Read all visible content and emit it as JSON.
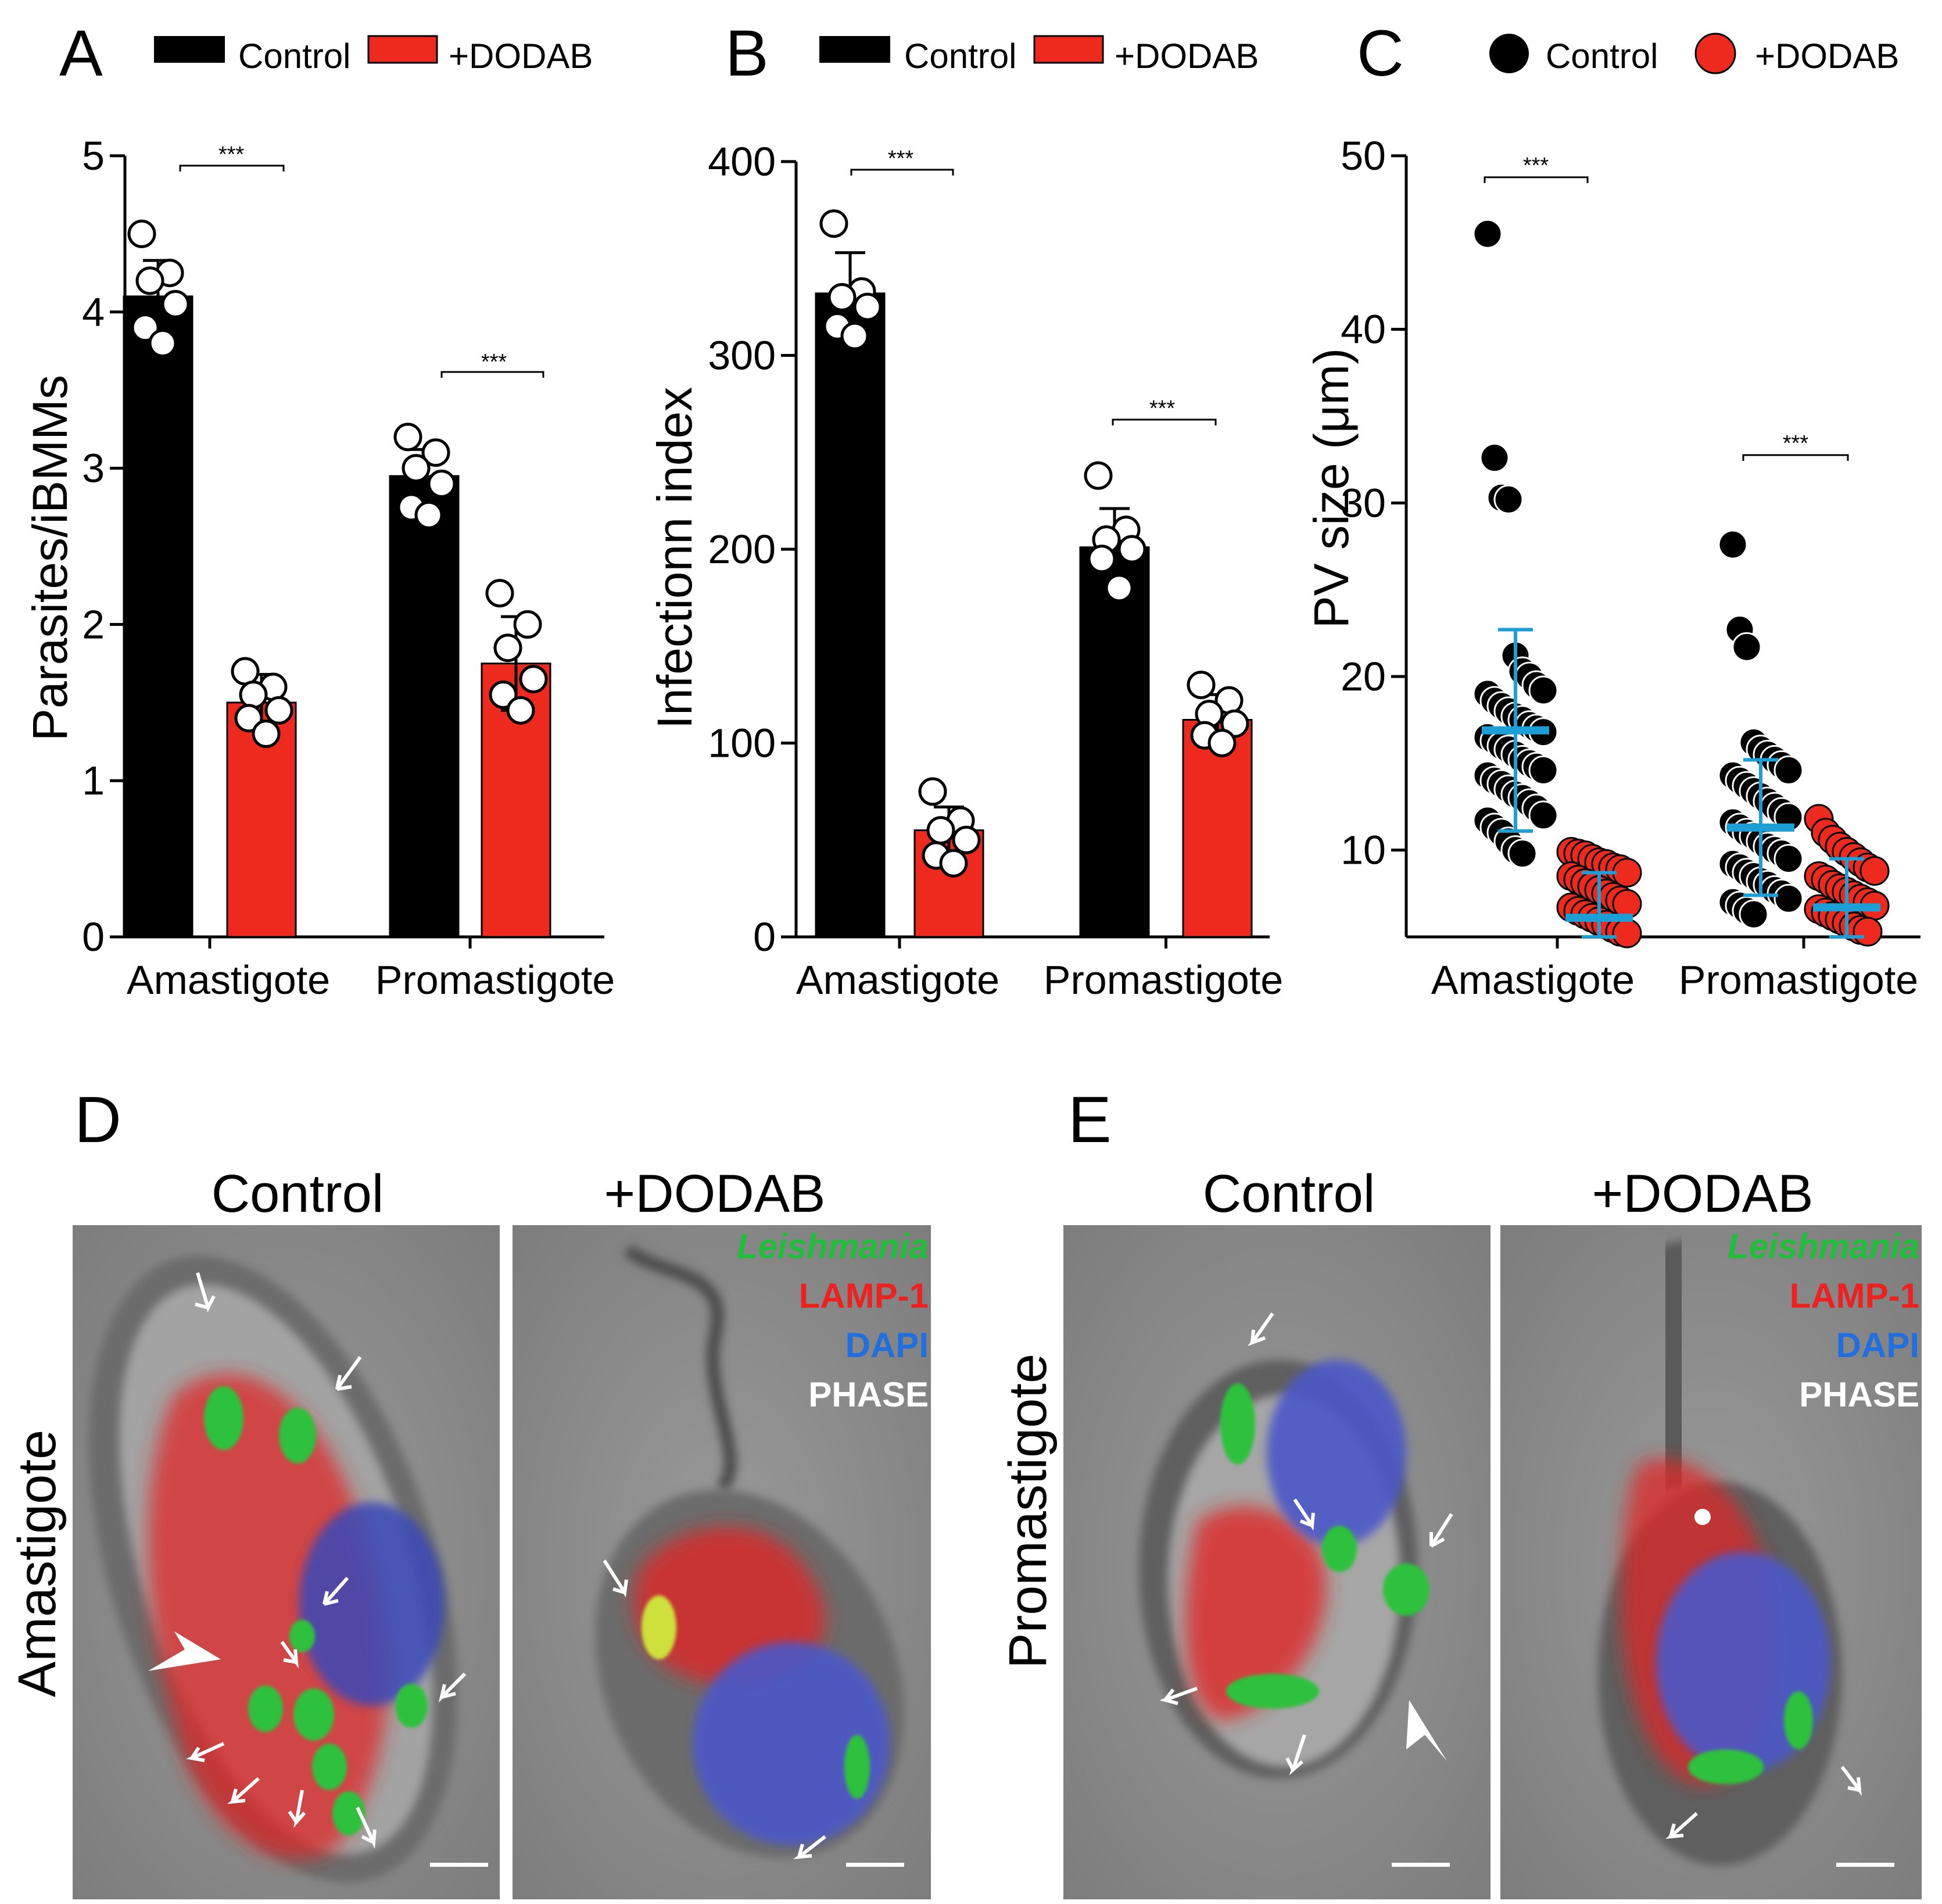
{
  "colors": {
    "control": "#000000",
    "dodab": "#ee2a1e",
    "mean_bar": "#1b9fd6",
    "leishmania": "#1fbf3a",
    "lamp1": "#ee2020",
    "dapi": "#1f6fe0",
    "phase": "#ffffff"
  },
  "chart_data": [
    {
      "panel": "A",
      "type": "bar",
      "categories": [
        "Amastigote",
        "Promastigote"
      ],
      "legend": [
        "Control",
        "+DODAB"
      ],
      "ylabel": "Parasites/iBMMs",
      "ylim": [
        0,
        5
      ],
      "yticks": [
        "0",
        "1",
        "2",
        "3",
        "4",
        "5"
      ],
      "series": [
        {
          "name": "Control",
          "values": [
            4.1,
            2.95
          ],
          "sd": [
            0.23,
            0.17
          ],
          "points": [
            [
              4.5,
              4.25,
              4.2,
              4.05,
              3.9,
              3.8
            ],
            [
              3.2,
              3.1,
              3.0,
              2.9,
              2.75,
              2.7
            ]
          ]
        },
        {
          "name": "+DODAB",
          "values": [
            1.5,
            1.75
          ],
          "sd": [
            0.18,
            0.3
          ],
          "points": [
            [
              1.7,
              1.6,
              1.55,
              1.45,
              1.4,
              1.3
            ],
            [
              2.2,
              2.0,
              1.85,
              1.65,
              1.55,
              1.45
            ]
          ]
        }
      ],
      "significance": [
        [
          "***",
          "***"
        ]
      ]
    },
    {
      "panel": "B",
      "type": "bar",
      "categories": [
        "Amastigote",
        "Promastigote"
      ],
      "legend": [
        "Control",
        "+DODAB"
      ],
      "ylabel": "Infectionn index",
      "ylim": [
        0,
        400
      ],
      "yticks": [
        "0",
        "100",
        "200",
        "300",
        "400"
      ],
      "series": [
        {
          "name": "Control",
          "values": [
            332,
            201
          ],
          "sd": [
            21,
            20
          ],
          "points": [
            [
              368,
              333,
              330,
              325,
              315,
              310
            ],
            [
              238,
              210,
              205,
              200,
              195,
              180
            ]
          ]
        },
        {
          "name": "+DODAB",
          "values": [
            55,
            112
          ],
          "sd": [
            12,
            13
          ],
          "points": [
            [
              75,
              60,
              55,
              50,
              42,
              38
            ],
            [
              130,
              122,
              115,
              110,
              104,
              100
            ]
          ]
        }
      ],
      "significance": [
        [
          "***",
          "***"
        ]
      ]
    },
    {
      "panel": "C",
      "type": "scatter",
      "categories": [
        "Amastigote",
        "Promastigote"
      ],
      "legend": [
        "Control",
        "+DODAB"
      ],
      "ylabel": "PV size (μm)",
      "ylim": [
        5,
        50
      ],
      "yticks": [
        "10",
        "20",
        "30",
        "40",
        "50"
      ],
      "series": [
        {
          "name": "Control",
          "mean": [
            16.9,
            11.3
          ],
          "sd": [
            5.8,
            3.9
          ],
          "points": [
            [
              45.5,
              32.6,
              30.3,
              30.2,
              21.2,
              20.3,
              20.0,
              19.5,
              19.2,
              19.0,
              18.6,
              18.3,
              18.0,
              17.7,
              17.5,
              17.2,
              17.0,
              16.8,
              16.5,
              16.3,
              16.0,
              15.8,
              15.5,
              15.2,
              15.0,
              14.8,
              14.6,
              14.3,
              14.0,
              13.8,
              13.5,
              13.2,
              13.0,
              12.7,
              12.4,
              12.0,
              11.7,
              11.3,
              11.0,
              10.5,
              10.0,
              9.8
            ],
            [
              27.6,
              22.7,
              21.7,
              16.2,
              15.8,
              15.5,
              15.2,
              14.9,
              14.6,
              14.3,
              14.0,
              13.7,
              13.4,
              13.1,
              12.8,
              12.5,
              12.2,
              11.9,
              11.6,
              11.3,
              11.0,
              10.8,
              10.5,
              10.2,
              10.0,
              9.8,
              9.5,
              9.2,
              9.0,
              8.7,
              8.5,
              8.2,
              8.0,
              7.7,
              7.5,
              7.2,
              7.0,
              6.8,
              6.5,
              6.3
            ]
          ]
        },
        {
          "name": "+DODAB",
          "mean": [
            6.1,
            6.7
          ],
          "sd": [
            2.6,
            2.8
          ],
          "points": [
            [
              9.9,
              9.8,
              9.7,
              9.5,
              9.3,
              9.2,
              9.0,
              8.9,
              8.7,
              8.5,
              8.3,
              8.1,
              7.9,
              7.7,
              7.5,
              7.3,
              7.1,
              6.9,
              6.7,
              6.5,
              6.3,
              6.1,
              5.9,
              5.7,
              5.5,
              5.3,
              5.2
            ],
            [
              11.8,
              11.0,
              10.6,
              10.2,
              9.9,
              9.6,
              9.3,
              9.0,
              8.8,
              8.5,
              8.3,
              8.0,
              7.8,
              7.6,
              7.4,
              7.2,
              7.0,
              6.8,
              6.6,
              6.4,
              6.2,
              6.0,
              5.8,
              5.6,
              5.4,
              5.3
            ]
          ]
        }
      ],
      "significance": [
        [
          "***",
          "***"
        ]
      ]
    }
  ],
  "micro": {
    "panel_d": "D",
    "panel_e": "E",
    "label_control": "Control",
    "label_dodab": "+DODAB",
    "row_d": "Amastigote",
    "row_e": "Promastigote",
    "channels": [
      "Leishmania",
      "LAMP-1",
      "DAPI",
      "PHASE"
    ]
  }
}
